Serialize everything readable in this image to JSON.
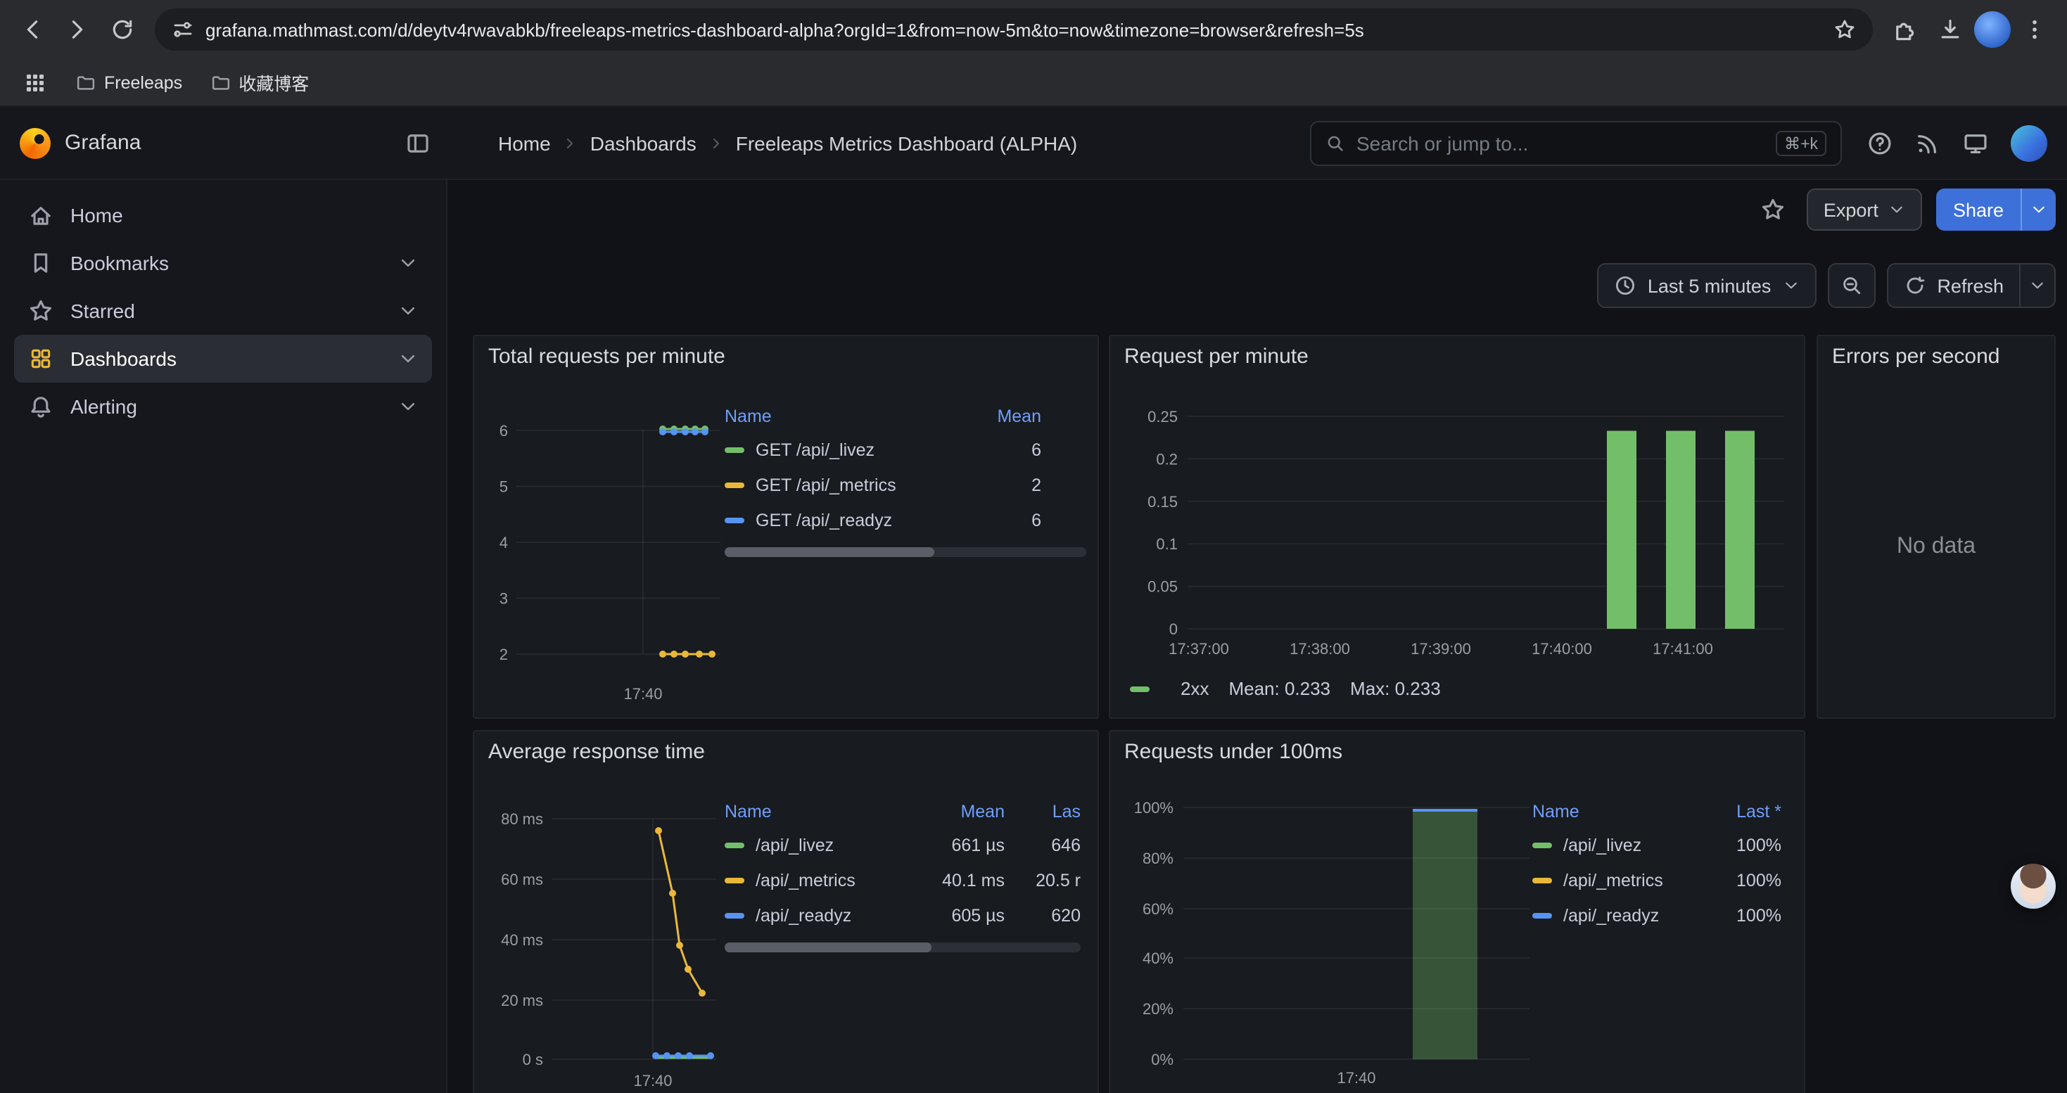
{
  "browser": {
    "url": "grafana.mathmast.com/d/deytv4rwavabkb/freeleaps-metrics-dashboard-alpha?orgId=1&from=now-5m&to=now&timezone=browser&refresh=5s",
    "bookmarks": [
      "Freeleaps",
      "收藏博客"
    ]
  },
  "header": {
    "brand": "Grafana",
    "breadcrumbs": [
      "Home",
      "Dashboards",
      "Freeleaps Metrics Dashboard (ALPHA)"
    ],
    "search": {
      "placeholder": "Search or jump to...",
      "shortcut": "⌘+k"
    }
  },
  "sidebar": {
    "items": [
      {
        "label": "Home",
        "icon": "home",
        "expandable": false,
        "active": false
      },
      {
        "label": "Bookmarks",
        "icon": "bookmark",
        "expandable": true,
        "active": false
      },
      {
        "label": "Starred",
        "icon": "star",
        "expandable": true,
        "active": false
      },
      {
        "label": "Dashboards",
        "icon": "appsgrid4",
        "expandable": true,
        "active": true
      },
      {
        "label": "Alerting",
        "icon": "bell",
        "expandable": true,
        "active": false
      }
    ]
  },
  "toolbar": {
    "export_label": "Export",
    "share_label": "Share"
  },
  "controls": {
    "time_range": "Last 5 minutes",
    "refresh_label": "Refresh"
  },
  "colors": {
    "green": "#73BF69",
    "yellow": "#EAB839",
    "blue": "#5794F2",
    "accent_blue": "#3D71D9",
    "link_blue": "#6E9FFF"
  },
  "panels": {
    "total_requests": {
      "title": "Total requests per minute",
      "type": "line",
      "y_ticks": [
        "6",
        "5",
        "4",
        "3",
        "2"
      ],
      "x_ticks": [
        "17:40"
      ],
      "legend_headers": [
        "Name",
        "Mean"
      ],
      "series": [
        {
          "name": "GET /api/_livez",
          "color": "#73BF69",
          "mean": "6",
          "value": 6
        },
        {
          "name": "GET /api/_metrics",
          "color": "#EAB839",
          "mean": "2",
          "value": 2
        },
        {
          "name": "GET /api/_readyz",
          "color": "#5794F2",
          "mean": "6",
          "value": 6
        }
      ]
    },
    "request_per_minute": {
      "title": "Request per minute",
      "type": "bar",
      "y_ticks": [
        "0.25",
        "0.2",
        "0.15",
        "0.1",
        "0.05",
        "0"
      ],
      "y_max": 0.25,
      "x_ticks": [
        "17:37:00",
        "17:38:00",
        "17:39:00",
        "17:40:00",
        "17:41:00"
      ],
      "bars": [
        0.233,
        0.233,
        0.233
      ],
      "color": "#73BF69",
      "series_label": "2xx",
      "mean_label": "Mean: 0.233",
      "max_label": "Max: 0.233"
    },
    "errors_per_second": {
      "title": "Errors per second",
      "message": "No data"
    },
    "average_response_time": {
      "title": "Average response time",
      "type": "line",
      "y_ticks": [
        "80 ms",
        "60 ms",
        "40 ms",
        "20 ms",
        "0 s"
      ],
      "x_ticks": [
        "17:40"
      ],
      "legend_headers": [
        "Name",
        "Mean",
        "Las"
      ],
      "series": [
        {
          "name": "/api/_livez",
          "color": "#73BF69",
          "mean": "661 µs",
          "last": "646"
        },
        {
          "name": "/api/_metrics",
          "color": "#EAB839",
          "mean": "40.1 ms",
          "last": "20.5 r"
        },
        {
          "name": "/api/_readyz",
          "color": "#5794F2",
          "mean": "605 µs",
          "last": "620"
        }
      ]
    },
    "requests_under_100ms": {
      "title": "Requests under 100ms",
      "type": "bar",
      "y_ticks": [
        "100%",
        "80%",
        "60%",
        "40%",
        "20%",
        "0%"
      ],
      "x_ticks": [
        "17:40"
      ],
      "bar_value": "100%",
      "legend_headers": [
        "Name",
        "Last *"
      ],
      "series": [
        {
          "name": "/api/_livez",
          "color": "#73BF69",
          "last": "100%"
        },
        {
          "name": "/api/_metrics",
          "color": "#EAB839",
          "last": "100%"
        },
        {
          "name": "/api/_readyz",
          "color": "#5794F2",
          "last": "100%"
        }
      ]
    }
  }
}
